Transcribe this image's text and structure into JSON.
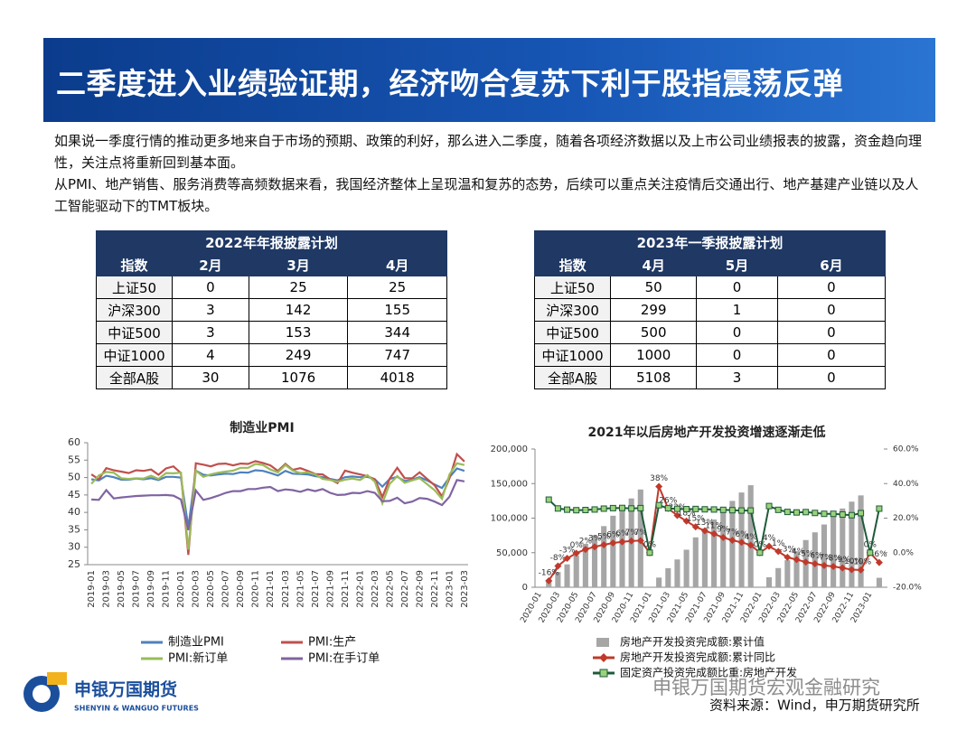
{
  "header": {
    "title": "二季度进入业绩验证期，经济吻合复苏下利于股指震荡反弹"
  },
  "bullets": [
    "如果说一季度行情的推动更多地来自于市场的预期、政策的利好，那么进入二季度，随着各项经济数据以及上市公司业绩报表的披露，资金趋向理性，关注点将重新回到基本面。",
    "从PMI、地产销售、服务消费等高频数据来看，我国经济整体上呈现温和复苏的态势，后续可以重点关注疫情后交通出行、地产基建产业链以及人工智能驱动下的TMT板块。"
  ],
  "tables": [
    {
      "title": "2022年年报披露计划",
      "columns": [
        "指数",
        "2月",
        "3月",
        "4月"
      ],
      "rows": [
        [
          "上证50",
          0,
          25,
          25
        ],
        [
          "沪深300",
          3,
          142,
          155
        ],
        [
          "中证500",
          3,
          153,
          344
        ],
        [
          "中证1000",
          4,
          249,
          747
        ],
        [
          "全部A股",
          30,
          1076,
          4018
        ]
      ]
    },
    {
      "title": "2023年一季报披露计划",
      "columns": [
        "指数",
        "4月",
        "5月",
        "6月"
      ],
      "rows": [
        [
          "上证50",
          50,
          0,
          0
        ],
        [
          "沪深300",
          299,
          1,
          0
        ],
        [
          "中证500",
          500,
          0,
          0
        ],
        [
          "中证1000",
          1000,
          0,
          0
        ],
        [
          "全部A股",
          5108,
          3,
          0
        ]
      ]
    }
  ],
  "chart_data": [
    {
      "type": "line",
      "title": "制造业PMI",
      "categories": [
        "2019-01",
        null,
        "2019-03",
        null,
        "2019-05",
        null,
        "2019-07",
        null,
        "2019-09",
        null,
        "2019-11",
        null,
        "2020-01",
        null,
        "2020-03",
        null,
        "2020-05",
        null,
        "2020-07",
        null,
        "2020-09",
        null,
        "2020-11",
        null,
        "2021-01",
        null,
        "2021-03",
        null,
        "2021-05",
        null,
        "2021-07",
        null,
        "2021-09",
        null,
        "2021-11",
        null,
        "2022-01",
        null,
        "2022-03",
        null,
        "2022-05",
        null,
        "2022-07",
        null,
        "2022-09",
        null,
        "2022-11",
        null,
        "2023-01",
        null,
        "2023-03"
      ],
      "ylim": [
        25,
        60
      ],
      "yticks": [
        25,
        30,
        35,
        40,
        45,
        50,
        55,
        60
      ],
      "series": [
        {
          "name": "制造业PMI",
          "color": "#4f81bd",
          "values": [
            49.5,
            49.2,
            50.5,
            50.1,
            49.4,
            49.4,
            49.7,
            49.5,
            49.8,
            49.3,
            50.2,
            50.2,
            50.0,
            35.7,
            52.0,
            50.8,
            50.6,
            50.9,
            51.1,
            51.0,
            51.5,
            51.4,
            52.1,
            51.9,
            51.3,
            50.6,
            51.9,
            51.1,
            51.0,
            50.9,
            50.4,
            50.1,
            49.6,
            49.2,
            50.1,
            50.3,
            50.1,
            50.2,
            49.5,
            47.4,
            49.6,
            50.2,
            49.0,
            49.4,
            50.1,
            49.2,
            48.0,
            47.0,
            50.1,
            52.6,
            51.9
          ]
        },
        {
          "name": "PMI:生产",
          "color": "#c0504d",
          "values": [
            50.9,
            49.5,
            52.7,
            52.1,
            51.7,
            51.3,
            52.1,
            51.9,
            52.3,
            50.8,
            52.6,
            53.2,
            51.3,
            27.8,
            54.1,
            53.7,
            53.2,
            53.9,
            54.0,
            53.5,
            54.0,
            53.9,
            54.7,
            54.2,
            53.5,
            51.9,
            53.9,
            52.2,
            52.7,
            51.9,
            51.0,
            50.9,
            49.5,
            48.4,
            52.0,
            51.4,
            50.9,
            50.4,
            49.5,
            44.4,
            49.7,
            52.8,
            49.8,
            49.8,
            51.5,
            49.6,
            47.8,
            44.6,
            49.8,
            56.7,
            54.6
          ]
        },
        {
          "name": "PMI:新订单",
          "color": "#9bbb59",
          "values": [
            48.2,
            50.6,
            51.6,
            51.4,
            49.8,
            49.6,
            49.8,
            49.7,
            50.5,
            49.6,
            51.3,
            51.2,
            51.4,
            29.3,
            52.0,
            50.2,
            50.9,
            51.4,
            51.7,
            52.0,
            52.8,
            52.8,
            53.9,
            53.6,
            52.3,
            51.5,
            53.6,
            52.0,
            51.3,
            51.5,
            50.9,
            49.6,
            49.3,
            48.8,
            49.4,
            49.7,
            49.3,
            50.7,
            48.8,
            42.6,
            48.2,
            50.4,
            48.5,
            49.2,
            49.8,
            48.1,
            46.4,
            43.9,
            50.9,
            54.1,
            53.6
          ]
        },
        {
          "name": "PMI:在手订单",
          "color": "#8064a2",
          "values": [
            43.7,
            43.6,
            46.4,
            44.0,
            44.3,
            44.5,
            44.7,
            44.8,
            44.9,
            44.9,
            45.0,
            44.8,
            43.7,
            34.9,
            46.3,
            43.6,
            44.1,
            44.8,
            45.6,
            46.1,
            46.1,
            46.7,
            46.7,
            47.1,
            47.3,
            46.1,
            46.6,
            46.4,
            45.9,
            46.6,
            46.1,
            46.7,
            45.6,
            45.0,
            45.1,
            45.6,
            45.5,
            46.1,
            45.6,
            43.2,
            43.3,
            44.2,
            42.6,
            43.1,
            44.1,
            43.9,
            43.1,
            42.1,
            44.5,
            49.3,
            48.9
          ]
        }
      ]
    },
    {
      "type": "bar",
      "title": "2021年以后房地产开发投资增速逐渐走低",
      "categories": [
        "2020-01",
        null,
        "2020-03",
        null,
        "2020-05",
        null,
        "2020-07",
        null,
        "2020-09",
        null,
        "2020-11",
        null,
        "2021-01",
        null,
        "2021-03",
        null,
        "2021-05",
        null,
        "2021-07",
        null,
        "2021-09",
        null,
        "2021-11",
        null,
        "2022-01",
        null,
        "2022-03",
        null,
        "2022-05",
        null,
        "2022-07",
        null,
        "2022-09",
        null,
        "2022-11",
        null,
        "2023-01",
        null
      ],
      "ylim": [
        0,
        200000
      ],
      "yticks": [
        0,
        {
          "value": 50000,
          "label": "50,000"
        },
        {
          "value": 100000,
          "label": "100,000"
        },
        {
          "value": 150000,
          "label": "150,000"
        },
        {
          "value": 200000,
          "label": "200,000"
        }
      ],
      "y2lim": [
        -20,
        60
      ],
      "y2ticks": [
        {
          "value": -20,
          "label": "-20.0%"
        },
        {
          "value": 0,
          "label": "0.0%"
        },
        {
          "value": 20,
          "label": "20.0%"
        },
        {
          "value": 40,
          "label": "40.0%"
        },
        {
          "value": 60,
          "label": "60.0%"
        }
      ],
      "series": [
        {
          "name": "房地产开发投资完成额:累计值",
          "type": "bar",
          "color": "#a6a6a6",
          "values": [
            null,
            10115,
            21963,
            33103,
            45920,
            62780,
            75325,
            88454,
            103484,
            116556,
            128492,
            141443,
            null,
            13986,
            27576,
            40240,
            54318,
            72179,
            84895,
            98011,
            110922,
            124934,
            137085,
            147602,
            null,
            14499,
            27765,
            39154,
            52134,
            68314,
            79462,
            90809,
            103559,
            113945,
            123863,
            132895,
            null,
            13669
          ]
        },
        {
          "name": "房地产开发投资完成额:累计同比",
          "type": "line",
          "axis": "y2",
          "color": "#c0392b",
          "values": [
            null,
            -16.3,
            -7.7,
            -3.3,
            -0.3,
            1.9,
            3.4,
            4.6,
            5.6,
            6.3,
            6.8,
            7.0,
            0,
            38.3,
            25.6,
            21.6,
            18.3,
            15.0,
            12.7,
            10.9,
            8.8,
            7.2,
            6.0,
            4.4,
            0,
            3.7,
            0.7,
            -2.7,
            -4.0,
            -5.4,
            -6.4,
            -7.4,
            -8.0,
            -8.8,
            -9.8,
            -10.0,
            0,
            -5.7
          ],
          "value_labels": [
            null,
            "-16%",
            "-8%",
            "-3%",
            "0%",
            "2%",
            "3%",
            "5%",
            "6%",
            "6%",
            "7%",
            "7%",
            "0%",
            "38%",
            "26%",
            "22%",
            "18%",
            "15%",
            "13%",
            "11%",
            "9%",
            "7%",
            "6%",
            "4%",
            "0%",
            "4%",
            "1%",
            "-3%",
            "-4%",
            "-5%",
            "-6%",
            "-7%",
            "-8%",
            "-9%",
            "-10%",
            "-10%",
            "0%",
            "-6%"
          ]
        },
        {
          "name": "固定资产投资完成额比重:房地产开发",
          "type": "line",
          "axis": "y2",
          "color": "#1e5b3a",
          "values": [
            null,
            30.7,
            25.6,
            24.9,
            24.6,
            24.7,
            25.0,
            25.5,
            25.8,
            25.9,
            25.6,
            25.8,
            0,
            27.5,
            25.7,
            25.4,
            25.2,
            25.3,
            25.1,
            25.0,
            24.8,
            24.6,
            24.4,
            24.4,
            0,
            27.0,
            24.8,
            23.6,
            23.3,
            23.5,
            23.0,
            22.5,
            22.5,
            22.1,
            21.7,
            22.9,
            0,
            25.5
          ]
        }
      ]
    }
  ],
  "logo": {
    "name": "申银万国期货",
    "english": "SHENYIN & WANGUO FUTURES"
  },
  "watermark": "申银万国期货宏观金融研究",
  "source": "资料来源：Wind，申万期货研究所"
}
